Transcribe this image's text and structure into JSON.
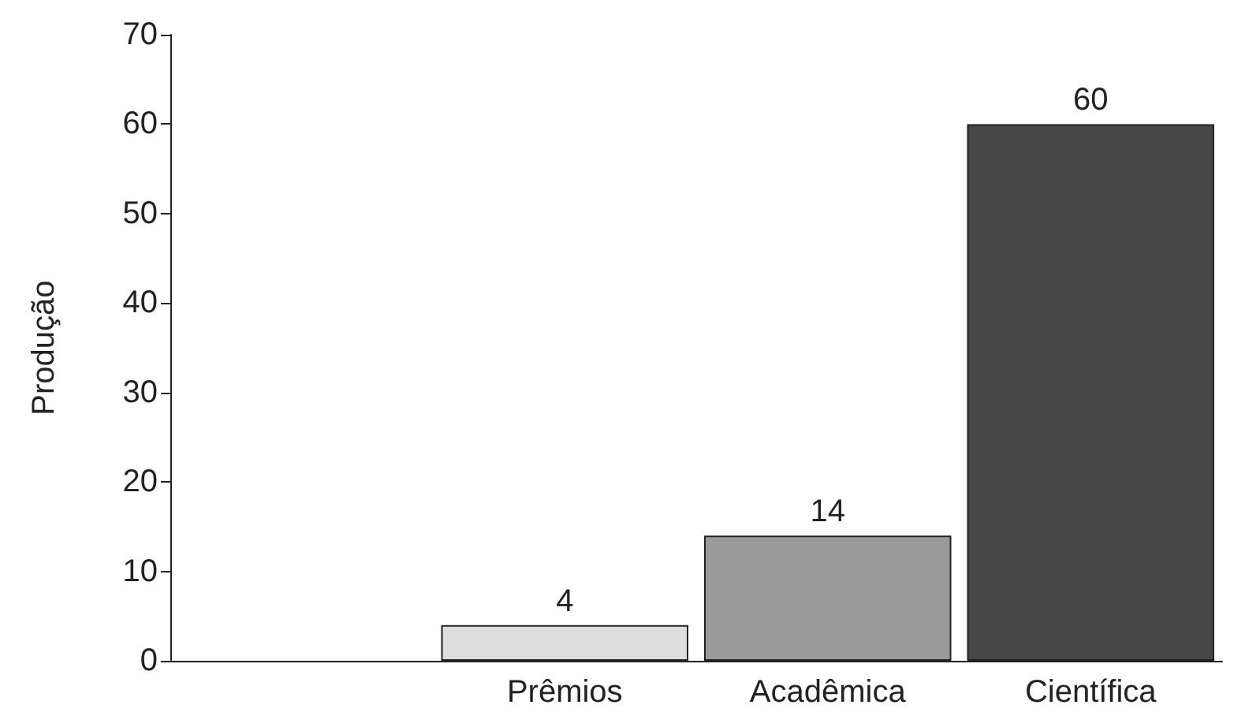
{
  "chart_data": {
    "type": "bar",
    "ylabel": "Produção",
    "categories": [
      null,
      "Prêmios",
      "Acadêmica",
      "Científica"
    ],
    "values": [
      null,
      4,
      14,
      60
    ],
    "colors": [
      "#dddddd",
      "#dddddd",
      "#9a9a9a",
      "#474747"
    ],
    "ylim": [
      0,
      70
    ],
    "yticks": [
      0,
      10,
      20,
      30,
      40,
      50,
      60,
      70
    ],
    "grid": false,
    "data_labels": true
  }
}
